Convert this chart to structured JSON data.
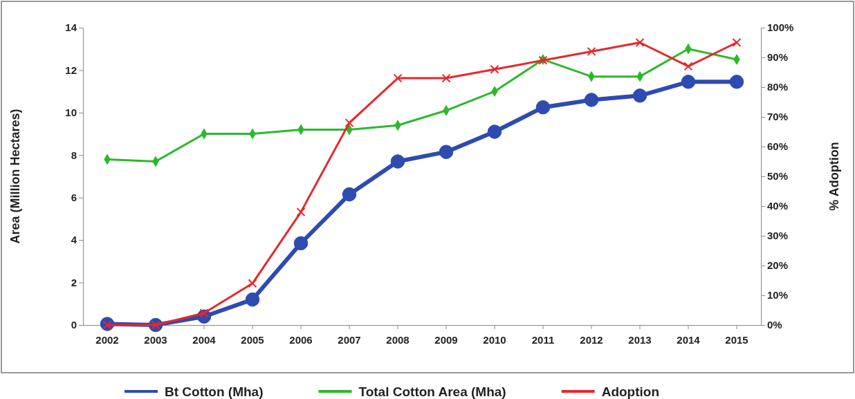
{
  "chart_data": {
    "type": "line",
    "ylabel": "Area (Million Hectares)",
    "y2label": "% Adoption",
    "categories": [
      "2002",
      "2003",
      "2004",
      "2005",
      "2006",
      "2007",
      "2008",
      "2009",
      "2010",
      "2011",
      "2012",
      "2013",
      "2014",
      "2015"
    ],
    "series": [
      {
        "name": "Bt Cotton (Mha)",
        "color": "#2e4bb0",
        "marker": "circle",
        "values": [
          0.05,
          0,
          0.4,
          1.2,
          3.85,
          6.15,
          7.7,
          8.15,
          9.1,
          10.25,
          10.6,
          10.8,
          11.45,
          11.45
        ]
      },
      {
        "name": "Total Cotton Area (Mha)",
        "color": "#2cb82c",
        "marker": "diamond",
        "values": [
          7.8,
          7.7,
          9.0,
          9.0,
          9.2,
          9.2,
          9.4,
          10.1,
          11.0,
          12.5,
          11.7,
          11.7,
          13.0,
          12.5
        ]
      },
      {
        "name": "Adoption",
        "color": "#e8262b",
        "marker": "cross",
        "axis": "y2",
        "values": [
          0,
          0,
          4,
          14,
          38,
          68,
          83,
          83,
          86,
          89,
          92,
          95,
          87,
          95
        ]
      }
    ],
    "ylim": [
      0,
      14
    ],
    "yticks": [
      0,
      2,
      4,
      6,
      8,
      10,
      12,
      14
    ],
    "y2lim": [
      0,
      100
    ],
    "y2ticks": [
      {
        "value": 0,
        "label": "0%"
      },
      {
        "value": 10,
        "label": "10%"
      },
      {
        "value": 20,
        "label": "20%"
      },
      {
        "value": 30,
        "label": "30%"
      },
      {
        "value": 40,
        "label": "40%"
      },
      {
        "value": 50,
        "label": "50%"
      },
      {
        "value": 60,
        "label": "60%"
      },
      {
        "value": 70,
        "label": "70%"
      },
      {
        "value": 80,
        "label": "80%"
      },
      {
        "value": 90,
        "label": "90%"
      },
      {
        "value": 100,
        "label": "100%"
      }
    ],
    "grid": false,
    "legend": "bottom"
  }
}
